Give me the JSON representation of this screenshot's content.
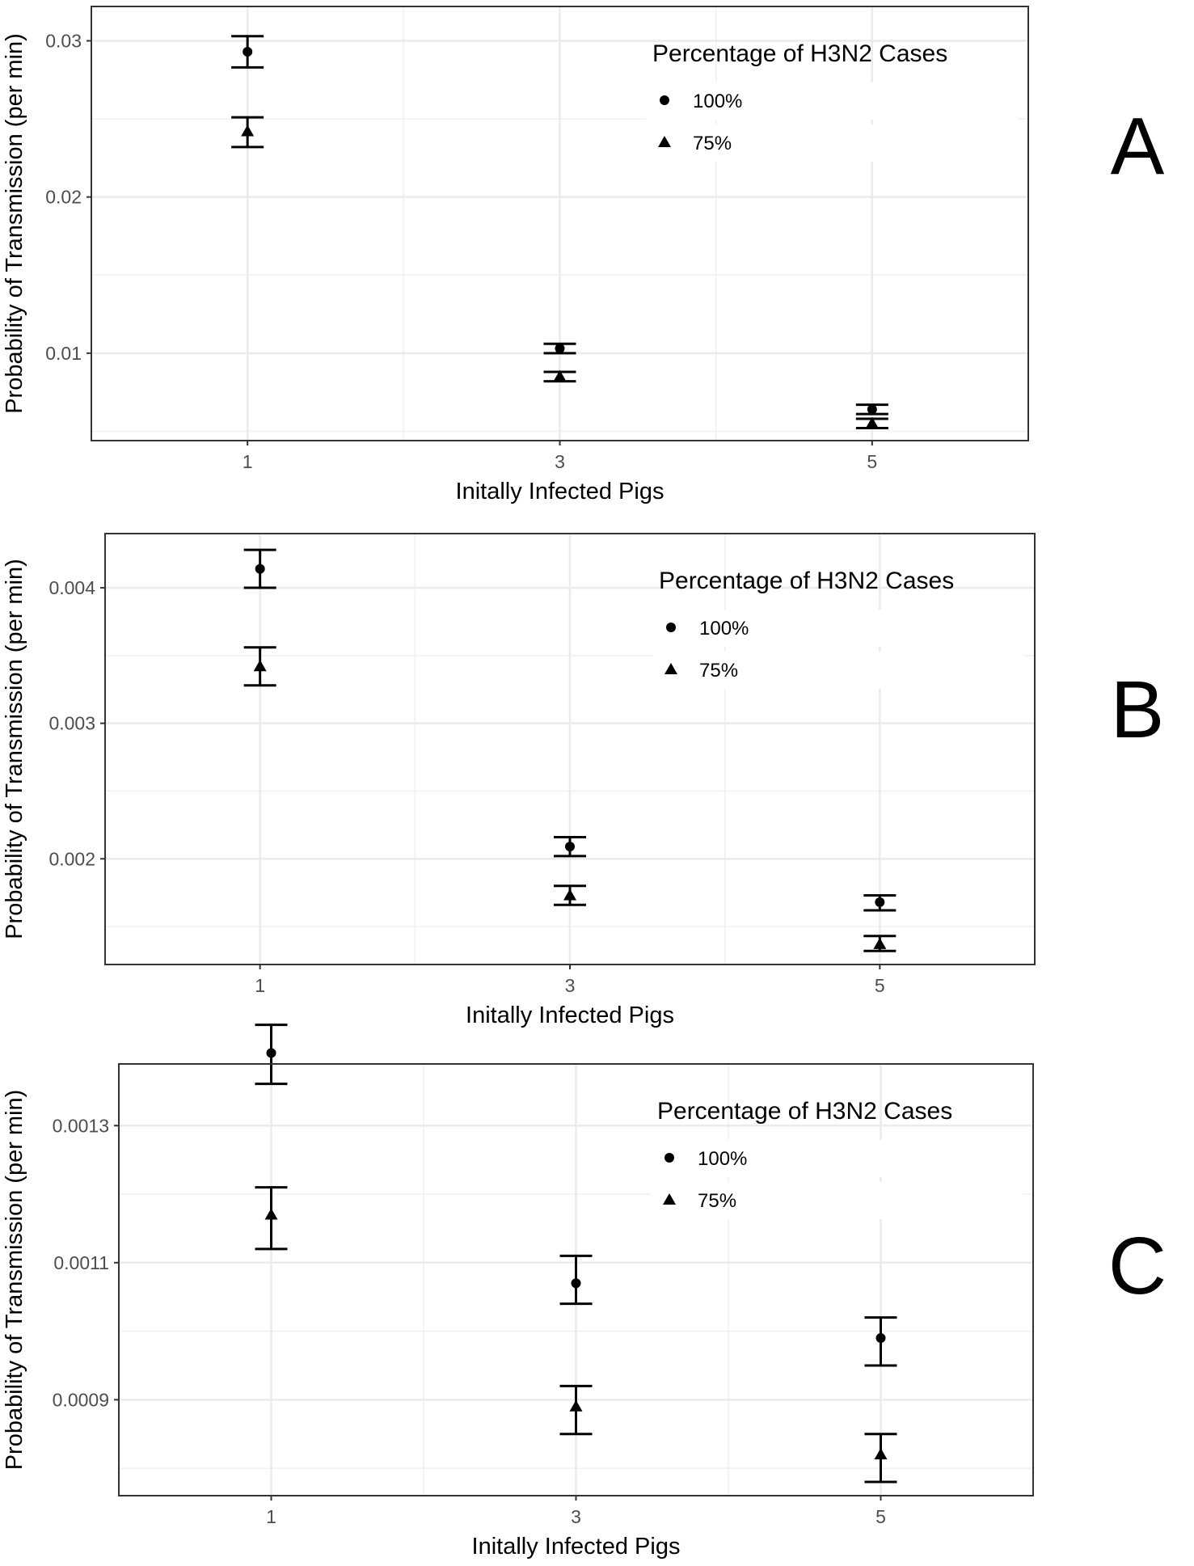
{
  "chart_data": [
    {
      "type": "scatter",
      "panel_label": "A",
      "xlabel": "Initally Infected Pigs",
      "ylabel": "Probability of Transmission (per min)",
      "x_ticks": [
        "1",
        "3",
        "5"
      ],
      "x_values": [
        1,
        3,
        5
      ],
      "y_ticks": [
        "0.01",
        "0.02",
        "0.03"
      ],
      "y_tick_values": [
        0.01,
        0.02,
        0.03
      ],
      "ylim": [
        0.0044,
        0.0322
      ],
      "grid": true,
      "legend": {
        "title": "Percentage of H3N2 Cases",
        "position": "top-right"
      },
      "series": [
        {
          "name": "100%",
          "marker": "circle",
          "values": [
            0.0293,
            0.0103,
            0.0064
          ],
          "lower": [
            0.0283,
            0.01,
            0.0061
          ],
          "upper": [
            0.0303,
            0.0106,
            0.0067
          ]
        },
        {
          "name": "75%",
          "marker": "triangle",
          "values": [
            0.0242,
            0.0085,
            0.0055
          ],
          "lower": [
            0.0232,
            0.0082,
            0.0052
          ],
          "upper": [
            0.0251,
            0.0088,
            0.0058
          ]
        }
      ]
    },
    {
      "type": "scatter",
      "panel_label": "B",
      "xlabel": "Initally Infected Pigs",
      "ylabel": "Probability of Transmission (per min)",
      "x_ticks": [
        "1",
        "3",
        "5"
      ],
      "x_values": [
        1,
        3,
        5
      ],
      "y_ticks": [
        "0.002",
        "0.003",
        "0.004"
      ],
      "y_tick_values": [
        0.002,
        0.003,
        0.004
      ],
      "ylim": [
        0.00122,
        0.0044
      ],
      "grid": true,
      "legend": {
        "title": "Percentage of H3N2 Cases",
        "position": "top-right"
      },
      "series": [
        {
          "name": "100%",
          "marker": "circle",
          "values": [
            0.00414,
            0.00209,
            0.00168
          ],
          "lower": [
            0.004,
            0.00202,
            0.00162
          ],
          "upper": [
            0.00428,
            0.00216,
            0.00173
          ]
        },
        {
          "name": "75%",
          "marker": "triangle",
          "values": [
            0.00342,
            0.00173,
            0.00137
          ],
          "lower": [
            0.00328,
            0.00166,
            0.00132
          ],
          "upper": [
            0.00356,
            0.0018,
            0.00143
          ]
        }
      ]
    },
    {
      "type": "scatter",
      "panel_label": "C",
      "xlabel": "Initally Infected Pigs",
      "ylabel": "Probability of Transmission (per min)",
      "x_ticks": [
        "1",
        "3",
        "5"
      ],
      "x_values": [
        1,
        3,
        5
      ],
      "y_ticks": [
        "0.0009",
        "0.0011",
        "0.0013"
      ],
      "y_tick_values": [
        0.0009,
        0.0011,
        0.0013
      ],
      "ylim": [
        0.00076,
        0.00139
      ],
      "grid": true,
      "legend": {
        "title": "Percentage of H3N2 Cases",
        "position": "top-right"
      },
      "series": [
        {
          "name": "100%",
          "marker": "circle",
          "values": [
            0.001406,
            0.00107,
            0.00099
          ],
          "lower": [
            0.001361,
            0.00104,
            0.00095
          ],
          "upper": [
            0.001447,
            0.00111,
            0.00102
          ]
        },
        {
          "name": "75%",
          "marker": "triangle",
          "values": [
            0.00117,
            0.00089,
            0.00082
          ],
          "lower": [
            0.00112,
            0.00085,
            0.00078
          ],
          "upper": [
            0.00121,
            0.00092,
            0.00085
          ]
        }
      ]
    }
  ]
}
